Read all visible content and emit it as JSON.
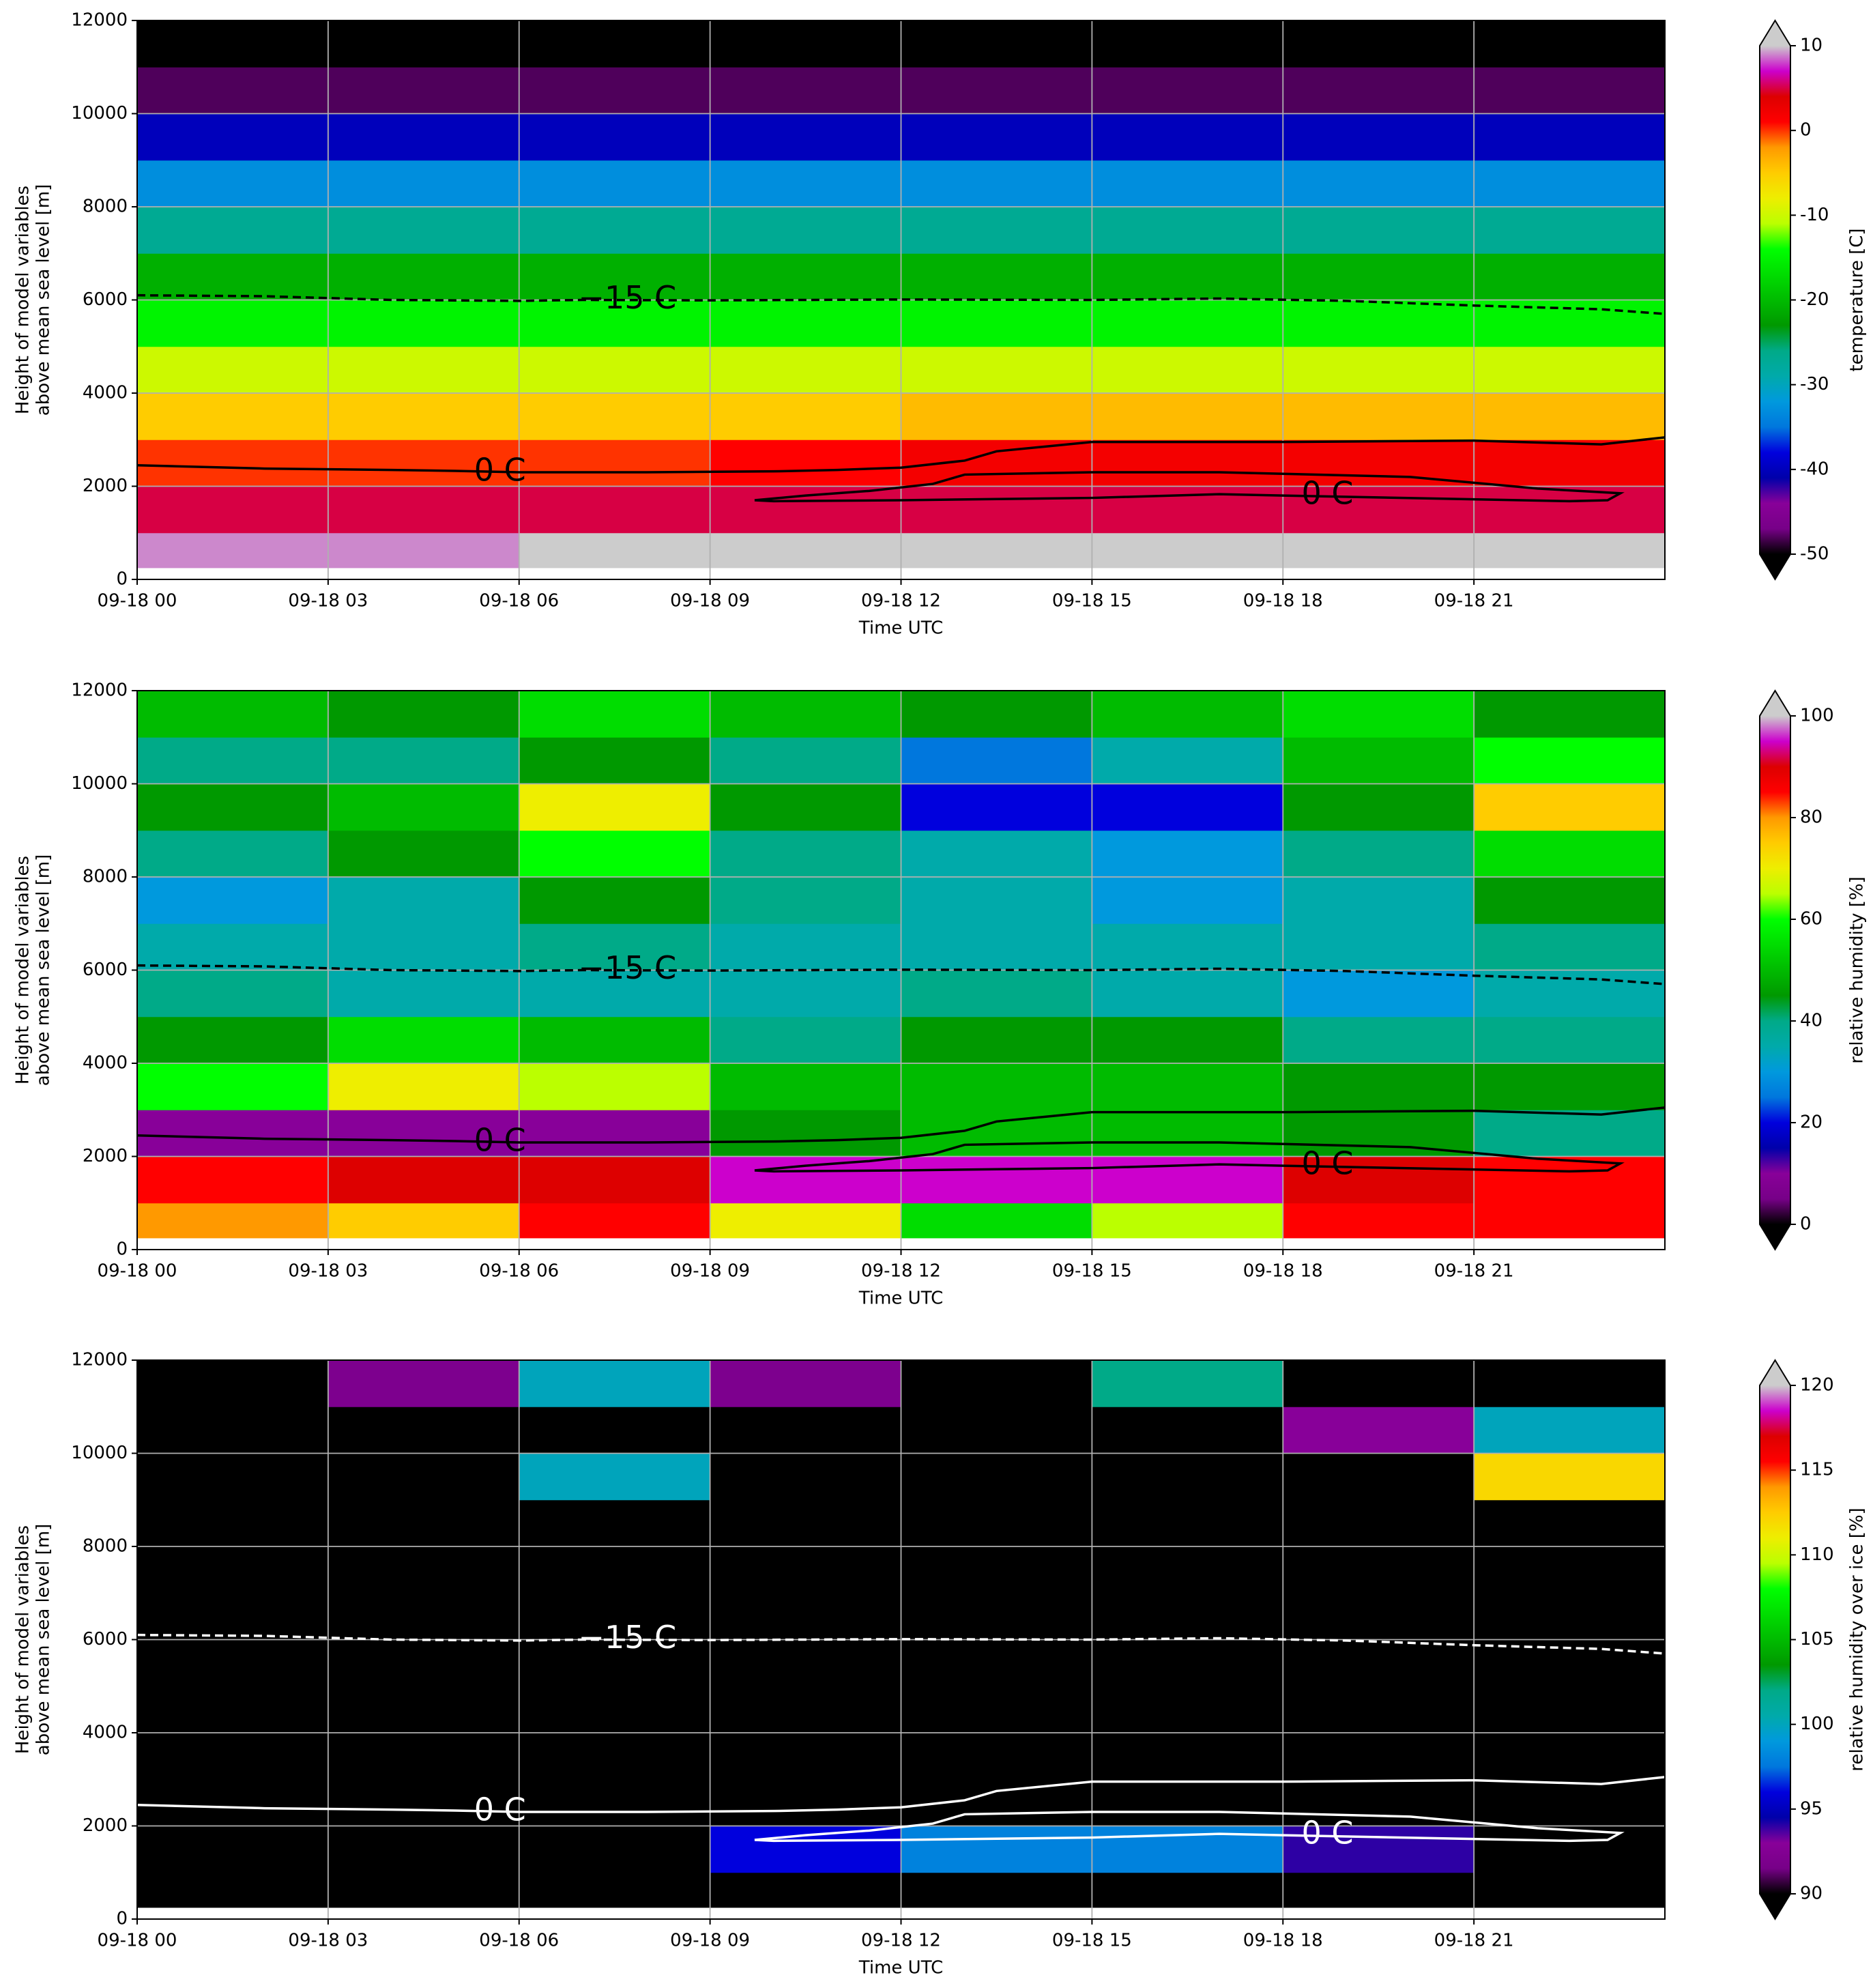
{
  "chart_data": [
    {
      "type": "heatmap",
      "xlabel": "Time UTC",
      "ylabel": [
        "Height of model variables",
        "above mean sea level [m]"
      ],
      "xlim": [
        0,
        24
      ],
      "ylim": [
        0,
        12000
      ],
      "xticks": [
        {
          "value": 0,
          "label": "09-18 00"
        },
        {
          "value": 3,
          "label": "09-18 03"
        },
        {
          "value": 6,
          "label": "09-18 06"
        },
        {
          "value": 9,
          "label": "09-18 09"
        },
        {
          "value": 12,
          "label": "09-18 12"
        },
        {
          "value": 15,
          "label": "09-18 15"
        },
        {
          "value": 18,
          "label": "09-18 18"
        },
        {
          "value": 21,
          "label": "09-18 21"
        }
      ],
      "yticks": [
        0,
        2000,
        4000,
        6000,
        8000,
        10000,
        12000
      ],
      "grid": true,
      "xedges": [
        0,
        3,
        6,
        9,
        12,
        15,
        18,
        21,
        24
      ],
      "yedges": [
        250,
        1000,
        2000,
        3000,
        4000,
        5000,
        6000,
        7000,
        8000,
        9000,
        10000,
        11000,
        12000
      ],
      "z": [
        [
          9,
          9,
          10,
          11,
          12,
          12,
          12,
          11
        ],
        [
          5,
          5,
          5,
          5,
          5,
          5,
          5,
          5
        ],
        [
          0,
          0,
          0,
          1,
          2,
          2,
          2,
          2
        ],
        [
          -5,
          -5,
          -5,
          -5,
          -4,
          -4,
          -4,
          -4
        ],
        [
          -10,
          -10,
          -10,
          -10,
          -10,
          -10,
          -10,
          -10
        ],
        [
          -15,
          -15,
          -15,
          -15,
          -15,
          -15,
          -15,
          -15
        ],
        [
          -21,
          -21,
          -21,
          -21,
          -21,
          -21,
          -21,
          -21
        ],
        [
          -27,
          -27,
          -27,
          -27,
          -27,
          -27,
          -27,
          -27
        ],
        [
          -33,
          -33,
          -33,
          -33,
          -33,
          -33,
          -33,
          -33
        ],
        [
          -40,
          -40,
          -40,
          -40,
          -40,
          -40,
          -40,
          -40
        ],
        [
          -48,
          -48,
          -48,
          -48,
          -48,
          -48,
          -48,
          -48
        ],
        [
          -55,
          -55,
          -55,
          -55,
          -55,
          -55,
          -55,
          -55
        ]
      ],
      "colormap": "nipy_spectral",
      "under_color": "#000000",
      "over_color": "#cccccc",
      "clim": [
        -50,
        10
      ],
      "cbar_ticks": [
        -50,
        -40,
        -30,
        -20,
        -10,
        0,
        10
      ],
      "colorbar_label": "temperature [C]",
      "contour_color": "#000000",
      "contours": [
        {
          "label": "0 C",
          "style": "solid",
          "x": [
            0,
            2,
            4,
            5,
            6,
            8,
            10,
            11,
            12,
            13,
            13.5,
            15,
            18,
            21,
            23,
            24
          ],
          "y": [
            2450,
            2380,
            2350,
            2330,
            2300,
            2300,
            2320,
            2350,
            2400,
            2550,
            2750,
            2950,
            2950,
            2980,
            2900,
            3050
          ]
        },
        {
          "label": "0 C",
          "style": "solid",
          "x": [
            9.7,
            10.5,
            11.5,
            12.5,
            13,
            15,
            17,
            20,
            22,
            23.3,
            23.1,
            22.5,
            18,
            17,
            15,
            12,
            10,
            9.7
          ],
          "y": [
            1700,
            1800,
            1900,
            2050,
            2250,
            2300,
            2300,
            2200,
            1950,
            1850,
            1700,
            1680,
            1800,
            1830,
            1750,
            1700,
            1680,
            1700
          ]
        },
        {
          "label": "−15 C",
          "style": "dashed",
          "x": [
            0,
            2,
            4,
            6,
            7,
            9,
            12,
            15,
            17,
            19,
            21,
            23,
            24
          ],
          "y": [
            6100,
            6080,
            6000,
            5980,
            6000,
            5990,
            6010,
            6000,
            6030,
            5980,
            5880,
            5800,
            5700
          ]
        }
      ]
    },
    {
      "type": "heatmap",
      "xlabel": "Time UTC",
      "ylabel": [
        "Height of model variables",
        "above mean sea level [m]"
      ],
      "xlim": [
        0,
        24
      ],
      "ylim": [
        0,
        12000
      ],
      "xticks": [
        {
          "value": 0,
          "label": "09-18 00"
        },
        {
          "value": 3,
          "label": "09-18 03"
        },
        {
          "value": 6,
          "label": "09-18 06"
        },
        {
          "value": 9,
          "label": "09-18 09"
        },
        {
          "value": 12,
          "label": "09-18 12"
        },
        {
          "value": 15,
          "label": "09-18 15"
        },
        {
          "value": 18,
          "label": "09-18 18"
        },
        {
          "value": 21,
          "label": "09-18 21"
        }
      ],
      "yticks": [
        0,
        2000,
        4000,
        6000,
        8000,
        10000,
        12000
      ],
      "grid": true,
      "xedges": [
        0,
        3,
        6,
        9,
        12,
        15,
        18,
        21,
        24
      ],
      "yedges": [
        250,
        1000,
        2000,
        3000,
        4000,
        5000,
        6000,
        7000,
        8000,
        9000,
        10000,
        11000,
        12000
      ],
      "z": [
        [
          80,
          75,
          85,
          70,
          55,
          65,
          85,
          85
        ],
        [
          85,
          90,
          90,
          95,
          95,
          95,
          90,
          85
        ],
        [
          10,
          10,
          10,
          45,
          50,
          50,
          45,
          40
        ],
        [
          60,
          70,
          65,
          50,
          50,
          50,
          45,
          45
        ],
        [
          45,
          55,
          50,
          40,
          45,
          45,
          40,
          40
        ],
        [
          40,
          35,
          35,
          35,
          40,
          35,
          30,
          35
        ],
        [
          35,
          35,
          40,
          35,
          35,
          35,
          35,
          40
        ],
        [
          30,
          35,
          45,
          40,
          35,
          30,
          35,
          45
        ],
        [
          40,
          45,
          60,
          40,
          35,
          30,
          40,
          55
        ],
        [
          45,
          50,
          70,
          45,
          20,
          20,
          45,
          75
        ],
        [
          40,
          40,
          45,
          40,
          25,
          35,
          50,
          60
        ],
        [
          50,
          45,
          55,
          50,
          45,
          50,
          55,
          45
        ]
      ],
      "colormap": "nipy_spectral",
      "under_color": "#000000",
      "over_color": "#cccccc",
      "clim": [
        0,
        100
      ],
      "cbar_ticks": [
        0,
        20,
        40,
        60,
        80,
        100
      ],
      "colorbar_label": "relative humidity [%]",
      "contour_color": "#000000",
      "contours": [
        {
          "label": "0 C",
          "style": "solid",
          "x": [
            0,
            2,
            4,
            5,
            6,
            8,
            10,
            11,
            12,
            13,
            13.5,
            15,
            18,
            21,
            23,
            24
          ],
          "y": [
            2450,
            2380,
            2350,
            2330,
            2300,
            2300,
            2320,
            2350,
            2400,
            2550,
            2750,
            2950,
            2950,
            2980,
            2900,
            3050
          ]
        },
        {
          "label": "0 C",
          "style": "solid",
          "x": [
            9.7,
            10.5,
            11.5,
            12.5,
            13,
            15,
            17,
            20,
            22,
            23.3,
            23.1,
            22.5,
            18,
            17,
            15,
            12,
            10,
            9.7
          ],
          "y": [
            1700,
            1800,
            1900,
            2050,
            2250,
            2300,
            2300,
            2200,
            1950,
            1850,
            1700,
            1680,
            1800,
            1830,
            1750,
            1700,
            1680,
            1700
          ]
        },
        {
          "label": "−15 C",
          "style": "dashed",
          "x": [
            0,
            2,
            4,
            6,
            7,
            9,
            12,
            15,
            17,
            19,
            21,
            23,
            24
          ],
          "y": [
            6100,
            6080,
            6000,
            5980,
            6000,
            5990,
            6010,
            6000,
            6030,
            5980,
            5880,
            5800,
            5700
          ]
        }
      ]
    },
    {
      "type": "heatmap",
      "xlabel": "Time UTC",
      "ylabel": [
        "Height of model variables",
        "above mean sea level [m]"
      ],
      "xlim": [
        0,
        24
      ],
      "ylim": [
        0,
        12000
      ],
      "xticks": [
        {
          "value": 0,
          "label": "09-18 00"
        },
        {
          "value": 3,
          "label": "09-18 03"
        },
        {
          "value": 6,
          "label": "09-18 06"
        },
        {
          "value": 9,
          "label": "09-18 09"
        },
        {
          "value": 12,
          "label": "09-18 12"
        },
        {
          "value": 15,
          "label": "09-18 15"
        },
        {
          "value": 18,
          "label": "09-18 18"
        },
        {
          "value": 21,
          "label": "09-18 21"
        }
      ],
      "yticks": [
        0,
        2000,
        4000,
        6000,
        8000,
        10000,
        12000
      ],
      "grid": true,
      "xedges": [
        0,
        3,
        6,
        9,
        12,
        15,
        18,
        21,
        24
      ],
      "yedges": [
        250,
        1000,
        2000,
        3000,
        4000,
        5000,
        6000,
        7000,
        8000,
        9000,
        10000,
        11000,
        12000
      ],
      "z": [
        [
          80,
          80,
          80,
          80,
          80,
          80,
          80,
          80
        ],
        [
          80,
          80,
          80,
          96,
          98,
          98,
          94,
          80
        ],
        [
          80,
          80,
          80,
          80,
          80,
          80,
          80,
          80
        ],
        [
          80,
          80,
          80,
          80,
          80,
          80,
          80,
          80
        ],
        [
          80,
          80,
          80,
          80,
          80,
          80,
          80,
          80
        ],
        [
          80,
          80,
          80,
          80,
          80,
          80,
          80,
          80
        ],
        [
          80,
          80,
          80,
          80,
          80,
          80,
          80,
          80
        ],
        [
          80,
          80,
          80,
          80,
          80,
          80,
          80,
          80
        ],
        [
          80,
          80,
          80,
          80,
          80,
          80,
          80,
          80
        ],
        [
          80,
          80,
          100,
          80,
          80,
          80,
          80,
          112
        ],
        [
          80,
          80,
          80,
          80,
          80,
          80,
          93,
          100
        ],
        [
          80,
          92,
          100,
          92,
          80,
          102,
          80,
          80
        ]
      ],
      "colormap": "nipy_spectral",
      "under_color": "#000000",
      "over_color": "#cccccc",
      "clim": [
        90,
        120
      ],
      "cbar_ticks": [
        90,
        95,
        100,
        105,
        110,
        115,
        120
      ],
      "colorbar_label": "relative humidity over ice [%]",
      "contour_color": "#ffffff",
      "contours": [
        {
          "label": "0 C",
          "style": "solid",
          "x": [
            0,
            2,
            4,
            5,
            6,
            8,
            10,
            11,
            12,
            13,
            13.5,
            15,
            18,
            21,
            23,
            24
          ],
          "y": [
            2450,
            2380,
            2350,
            2330,
            2300,
            2300,
            2320,
            2350,
            2400,
            2550,
            2750,
            2950,
            2950,
            2980,
            2900,
            3050
          ]
        },
        {
          "label": "0 C",
          "style": "solid",
          "x": [
            9.7,
            10.5,
            11.5,
            12.5,
            13,
            15,
            17,
            20,
            22,
            23.3,
            23.1,
            22.5,
            18,
            17,
            15,
            12,
            10,
            9.7
          ],
          "y": [
            1700,
            1800,
            1900,
            2050,
            2250,
            2300,
            2300,
            2200,
            1950,
            1850,
            1700,
            1680,
            1800,
            1830,
            1750,
            1700,
            1680,
            1700
          ]
        },
        {
          "label": "−15 C",
          "style": "dashed",
          "x": [
            0,
            2,
            4,
            6,
            7,
            9,
            12,
            15,
            17,
            19,
            21,
            23,
            24
          ],
          "y": [
            6100,
            6080,
            6000,
            5980,
            6000,
            5990,
            6010,
            6000,
            6030,
            5980,
            5880,
            5800,
            5700
          ]
        }
      ]
    }
  ]
}
